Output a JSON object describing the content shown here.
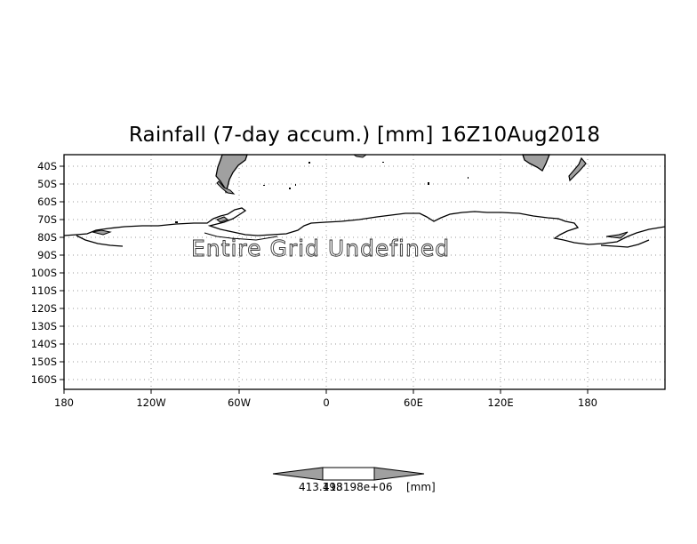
{
  "title": "Rainfall (7-day accum.) [mm] 16Z10Aug2018",
  "message": "Entire Grid Undefined",
  "axes": {
    "lat_labels": [
      "40S",
      "50S",
      "60S",
      "70S",
      "80S",
      "90S",
      "100S",
      "110S",
      "120S",
      "130S",
      "140S",
      "150S",
      "160S"
    ],
    "lon_labels": [
      "180",
      "120W",
      "60W",
      "0",
      "60E",
      "120E",
      "180"
    ]
  },
  "colorbar": {
    "label_left": "413.198",
    "label_mid": "413198e+06",
    "label_units": "[mm]",
    "colors": {
      "triangles": "#a0a0a0",
      "center": "#ffffff"
    }
  },
  "colors": {
    "land": "#a0a0a0",
    "grid": "#9a9a9a",
    "frame": "#000000"
  }
}
